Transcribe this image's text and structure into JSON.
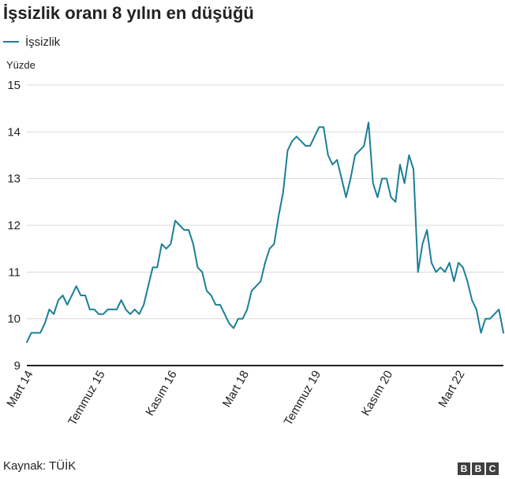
{
  "title": "İşsizlik oranı 8 yılın en düşüğü",
  "source": "Kaynak: TÜİK",
  "logo": [
    "B",
    "B",
    "C"
  ],
  "colors": {
    "line": "#1a7f96",
    "grid": "#d9d9d9",
    "axis": "#222222",
    "text": "#222222"
  },
  "chart_data": {
    "type": "line",
    "unit_label": "Yüzde",
    "ylim": [
      9,
      15
    ],
    "yticks": [
      9,
      10,
      11,
      12,
      13,
      14,
      15
    ],
    "grid": true,
    "legend_placement": "top-left",
    "x_tick_labels": [
      {
        "label": "Mart 14",
        "index": 0
      },
      {
        "label": "Temmuz 15",
        "index": 16
      },
      {
        "label": "Kasım 16",
        "index": 32
      },
      {
        "label": "Mart 18",
        "index": 48
      },
      {
        "label": "Temmuz 19",
        "index": 64
      },
      {
        "label": "Kasım 20",
        "index": 80
      },
      {
        "label": "Mart 22",
        "index": 96
      }
    ],
    "series": [
      {
        "name": "İşsizlik",
        "values": [
          9.5,
          9.7,
          9.7,
          9.7,
          9.9,
          10.2,
          10.1,
          10.4,
          10.5,
          10.3,
          10.5,
          10.7,
          10.5,
          10.5,
          10.2,
          10.2,
          10.1,
          10.1,
          10.2,
          10.2,
          10.2,
          10.4,
          10.2,
          10.1,
          10.2,
          10.1,
          10.3,
          10.7,
          11.1,
          11.1,
          11.6,
          11.5,
          11.6,
          12.1,
          12.0,
          11.9,
          11.9,
          11.6,
          11.1,
          11.0,
          10.6,
          10.5,
          10.3,
          10.3,
          10.1,
          9.9,
          9.8,
          10.0,
          10.0,
          10.2,
          10.6,
          10.7,
          10.8,
          11.2,
          11.5,
          11.6,
          12.2,
          12.7,
          13.6,
          13.8,
          13.9,
          13.8,
          13.7,
          13.7,
          13.9,
          14.1,
          14.1,
          13.5,
          13.3,
          13.4,
          13.0,
          12.6,
          13.0,
          13.5,
          13.6,
          13.7,
          14.2,
          12.9,
          12.6,
          13.0,
          13.0,
          12.6,
          12.5,
          13.3,
          12.9,
          13.5,
          13.2,
          11.0,
          11.6,
          11.9,
          11.2,
          11.0,
          11.1,
          11.0,
          11.2,
          10.8,
          11.2,
          11.1,
          10.8,
          10.4,
          10.2,
          9.7,
          10.0,
          10.0,
          10.1,
          10.2,
          9.7
        ]
      }
    ]
  }
}
